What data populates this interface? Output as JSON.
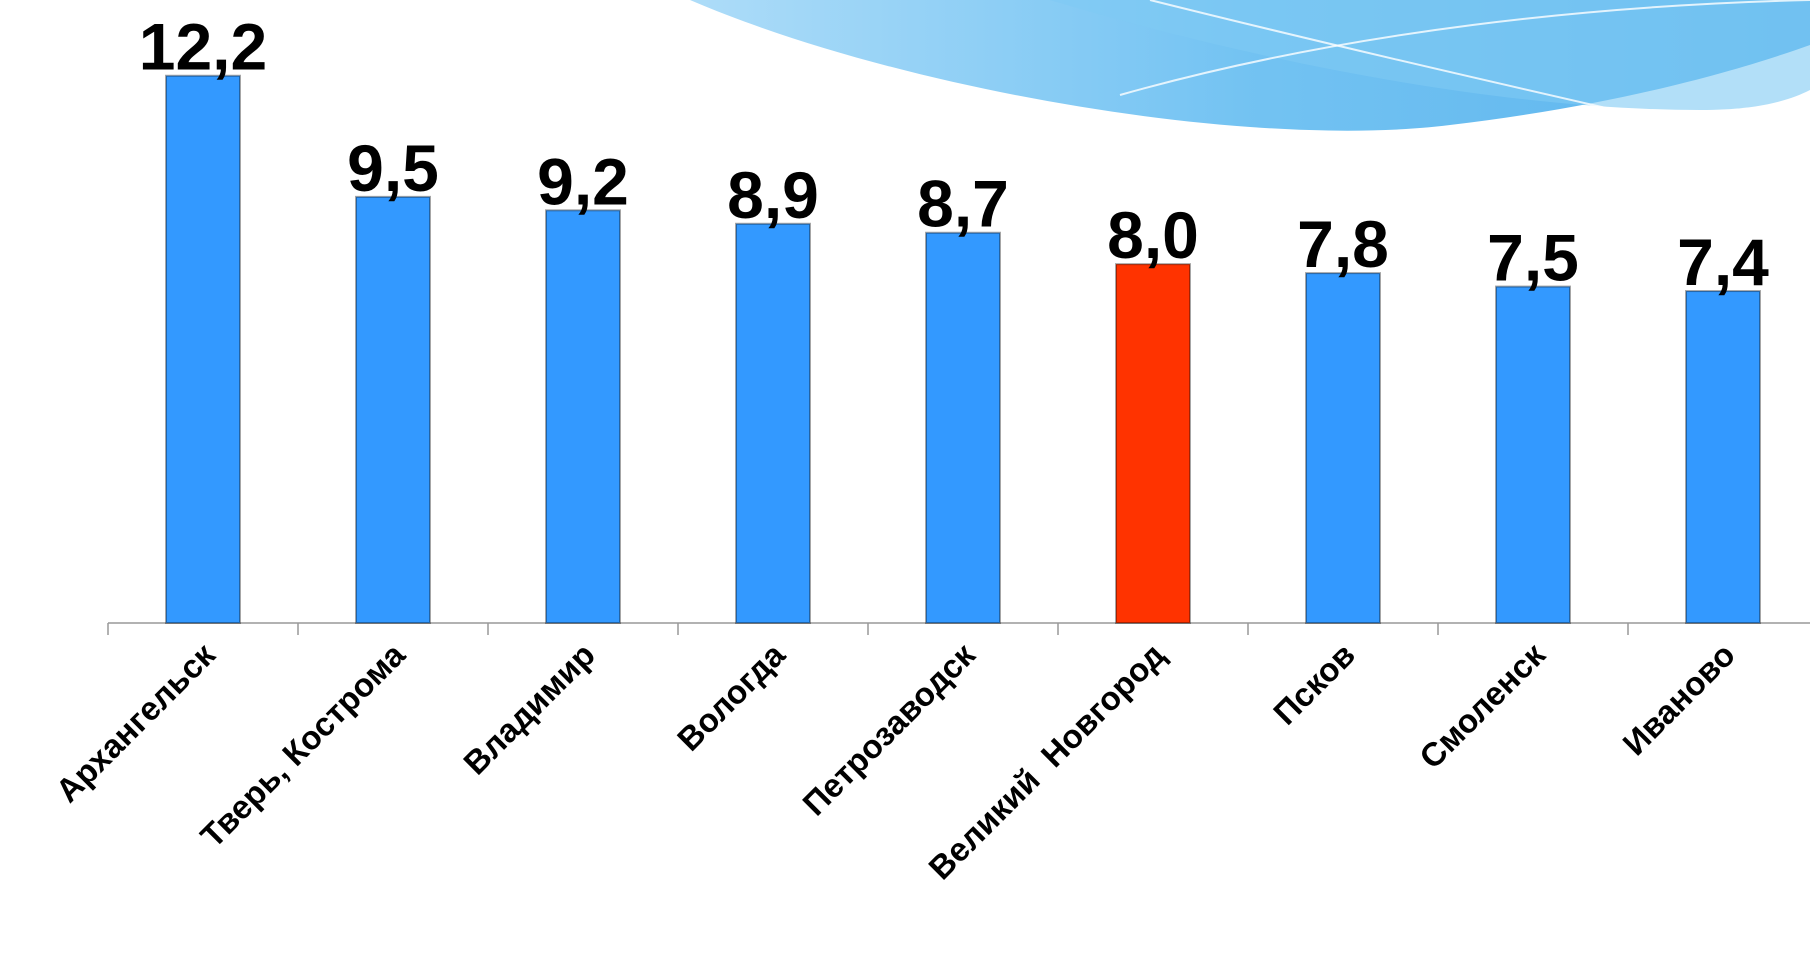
{
  "chart_data": {
    "type": "bar",
    "categories": [
      "Архангельск",
      "Тверь, Кострома",
      "Владимир",
      "Вологда",
      "Петрозаводск",
      "Великий  Новгород",
      "Псков",
      "Смоленск",
      "Иваново"
    ],
    "values": [
      12.2,
      9.5,
      9.2,
      8.9,
      8.7,
      8.0,
      7.8,
      7.5,
      7.4
    ],
    "value_labels": [
      "12,2",
      "9,5",
      "9,2",
      "8,9",
      "8,7",
      "8,0",
      "7,8",
      "7,5",
      "7,4"
    ],
    "colors": [
      "#3399ff",
      "#3399ff",
      "#3399ff",
      "#3399ff",
      "#3399ff",
      "#ff3300",
      "#3399ff",
      "#3399ff",
      "#3399ff"
    ],
    "ylim": [
      0,
      14
    ]
  }
}
